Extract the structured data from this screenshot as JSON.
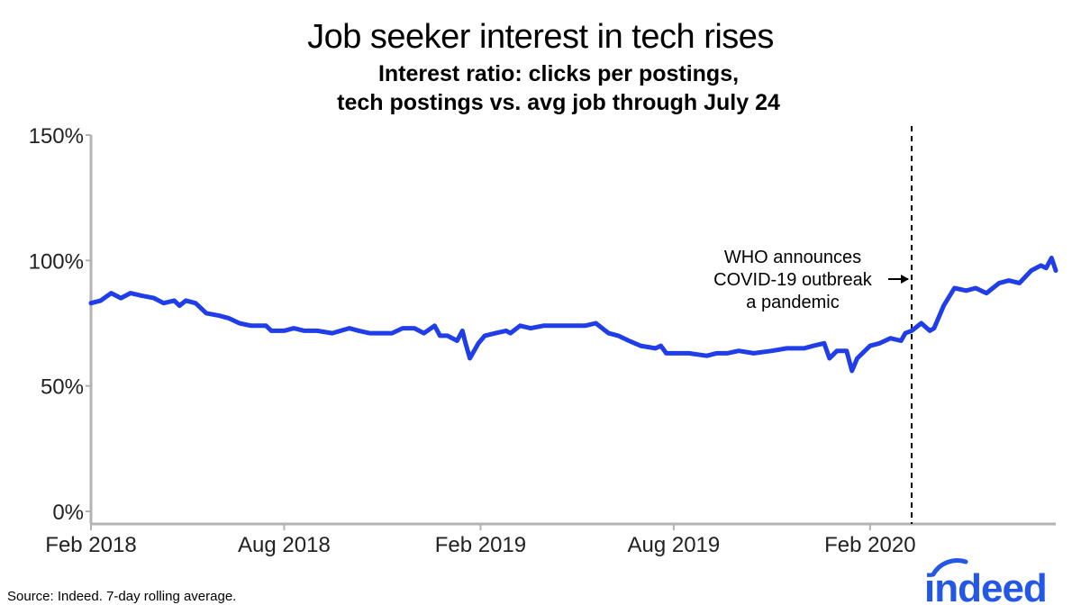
{
  "chart_data": {
    "type": "line",
    "title": "Job seeker interest in tech rises",
    "subtitle": "Interest ratio: clicks per postings,\n tech postings vs. avg job through July 24",
    "xlabel": "",
    "ylabel": "",
    "ylim": [
      0,
      150
    ],
    "yticks": [
      0,
      50,
      100,
      150
    ],
    "ytick_labels": [
      "0%",
      "50%",
      "100%",
      "150%"
    ],
    "xlim": [
      "2018-02-01",
      "2020-07-24"
    ],
    "xticks": [
      "2018-02-01",
      "2018-08-01",
      "2019-02-01",
      "2019-08-01",
      "2020-02-01"
    ],
    "xtick_labels": [
      "Feb 2018",
      "Aug 2018",
      "Feb 2019",
      "Aug 2019",
      "Feb 2020"
    ],
    "grid": false,
    "series_color": "#1f3de8",
    "series": [
      {
        "points": [
          [
            "2018-02-01",
            83
          ],
          [
            "2018-02-10",
            84
          ],
          [
            "2018-02-20",
            87
          ],
          [
            "2018-03-01",
            85
          ],
          [
            "2018-03-10",
            87
          ],
          [
            "2018-03-20",
            86
          ],
          [
            "2018-04-01",
            85
          ],
          [
            "2018-04-10",
            83
          ],
          [
            "2018-04-20",
            84
          ],
          [
            "2018-04-25",
            82
          ],
          [
            "2018-05-01",
            84
          ],
          [
            "2018-05-10",
            83
          ],
          [
            "2018-05-20",
            79
          ],
          [
            "2018-06-01",
            78
          ],
          [
            "2018-06-10",
            77
          ],
          [
            "2018-06-20",
            75
          ],
          [
            "2018-07-01",
            74
          ],
          [
            "2018-07-15",
            74
          ],
          [
            "2018-07-20",
            72
          ],
          [
            "2018-08-01",
            72
          ],
          [
            "2018-08-10",
            73
          ],
          [
            "2018-08-20",
            72
          ],
          [
            "2018-09-01",
            72
          ],
          [
            "2018-09-15",
            71
          ],
          [
            "2018-10-01",
            73
          ],
          [
            "2018-10-10",
            72
          ],
          [
            "2018-10-20",
            71
          ],
          [
            "2018-11-01",
            71
          ],
          [
            "2018-11-10",
            71
          ],
          [
            "2018-11-20",
            73
          ],
          [
            "2018-12-01",
            73
          ],
          [
            "2018-12-10",
            71
          ],
          [
            "2018-12-20",
            74
          ],
          [
            "2018-12-25",
            70
          ],
          [
            "2019-01-01",
            70
          ],
          [
            "2019-01-10",
            68
          ],
          [
            "2019-01-15",
            72
          ],
          [
            "2019-01-18",
            67
          ],
          [
            "2019-01-22",
            61
          ],
          [
            "2019-01-30",
            67
          ],
          [
            "2019-02-05",
            70
          ],
          [
            "2019-02-15",
            71
          ],
          [
            "2019-02-25",
            72
          ],
          [
            "2019-03-01",
            71
          ],
          [
            "2019-03-10",
            74
          ],
          [
            "2019-03-20",
            73
          ],
          [
            "2019-04-01",
            74
          ],
          [
            "2019-04-15",
            74
          ],
          [
            "2019-05-01",
            74
          ],
          [
            "2019-05-10",
            74
          ],
          [
            "2019-05-20",
            75
          ],
          [
            "2019-06-01",
            71
          ],
          [
            "2019-06-10",
            70
          ],
          [
            "2019-06-20",
            68
          ],
          [
            "2019-07-01",
            66
          ],
          [
            "2019-07-15",
            65
          ],
          [
            "2019-07-20",
            66
          ],
          [
            "2019-07-25",
            63
          ],
          [
            "2019-08-01",
            63
          ],
          [
            "2019-08-15",
            63
          ],
          [
            "2019-09-01",
            62
          ],
          [
            "2019-09-10",
            63
          ],
          [
            "2019-09-20",
            63
          ],
          [
            "2019-10-01",
            64
          ],
          [
            "2019-10-15",
            63
          ],
          [
            "2019-11-01",
            64
          ],
          [
            "2019-11-15",
            65
          ],
          [
            "2019-12-01",
            65
          ],
          [
            "2019-12-10",
            66
          ],
          [
            "2019-12-20",
            67
          ],
          [
            "2019-12-25",
            61
          ],
          [
            "2020-01-01",
            64
          ],
          [
            "2020-01-10",
            64
          ],
          [
            "2020-01-15",
            56
          ],
          [
            "2020-01-20",
            61
          ],
          [
            "2020-02-01",
            66
          ],
          [
            "2020-02-10",
            67
          ],
          [
            "2020-02-20",
            69
          ],
          [
            "2020-03-01",
            68
          ],
          [
            "2020-03-05",
            71
          ],
          [
            "2020-03-11",
            72
          ],
          [
            "2020-03-20",
            75
          ],
          [
            "2020-03-28",
            72
          ],
          [
            "2020-04-01",
            73
          ],
          [
            "2020-04-10",
            82
          ],
          [
            "2020-04-20",
            89
          ],
          [
            "2020-05-01",
            88
          ],
          [
            "2020-05-10",
            89
          ],
          [
            "2020-05-20",
            87
          ],
          [
            "2020-06-01",
            91
          ],
          [
            "2020-06-10",
            92
          ],
          [
            "2020-06-20",
            91
          ],
          [
            "2020-07-01",
            96
          ],
          [
            "2020-07-10",
            98
          ],
          [
            "2020-07-15",
            97
          ],
          [
            "2020-07-20",
            101
          ],
          [
            "2020-07-24",
            96
          ]
        ]
      }
    ],
    "annotations": [
      {
        "x": "2020-03-11",
        "lines": [
          "WHO announces",
          "COVID-19 outbreak",
          "a pandemic"
        ],
        "style": "dashed-vertical-line-with-arrow"
      }
    ]
  },
  "footer": {
    "source": "Source: Indeed. 7-day rolling average.",
    "logo_text": "indeed",
    "logo_color": "#2557e6"
  }
}
